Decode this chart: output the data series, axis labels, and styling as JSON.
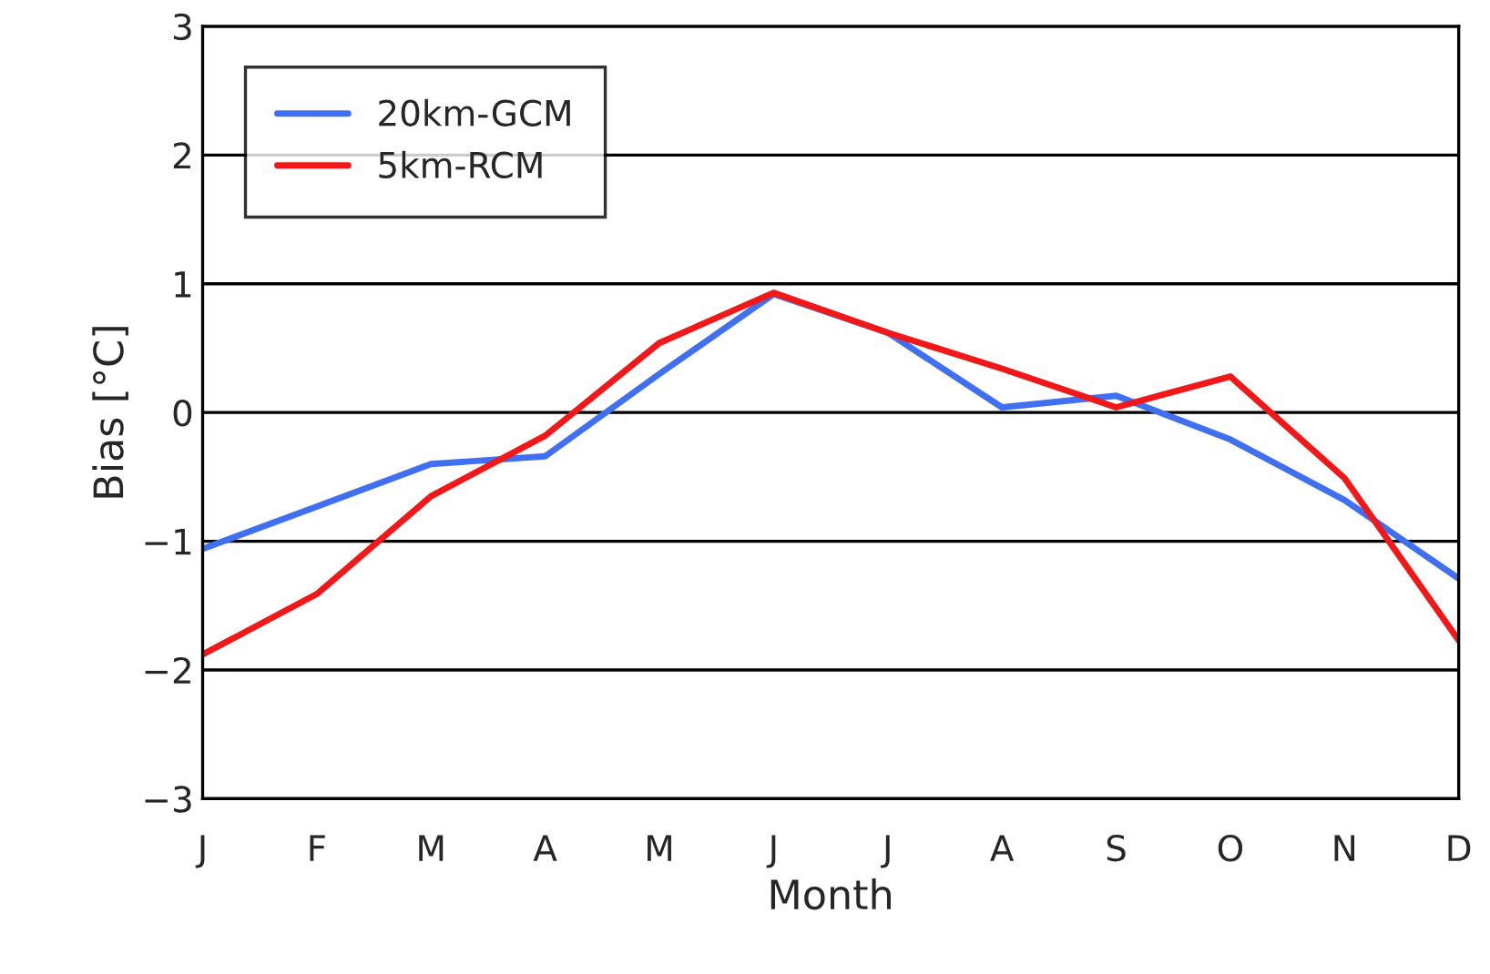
{
  "chart_data": {
    "type": "line",
    "xlabel": "Month",
    "ylabel": "Bias [°C]",
    "categories": [
      "J",
      "F",
      "M",
      "A",
      "M",
      "J",
      "J",
      "A",
      "S",
      "O",
      "N",
      "D"
    ],
    "series": [
      {
        "name": "20km-GCM",
        "color": "#4070f0",
        "values": [
          -1.06,
          -0.73,
          -0.4,
          -0.34,
          0.3,
          0.92,
          0.62,
          0.04,
          0.13,
          -0.21,
          -0.68,
          -1.29
        ]
      },
      {
        "name": "5km-RCM",
        "color": "#f01818",
        "values": [
          -1.88,
          -1.41,
          -0.65,
          -0.18,
          0.54,
          0.93,
          0.62,
          0.34,
          0.04,
          0.28,
          -0.51,
          -1.77
        ]
      }
    ],
    "ylim": [
      -3,
      3
    ],
    "yticks": [
      {
        "value": -3,
        "label": "−3"
      },
      {
        "value": -2,
        "label": "−2"
      },
      {
        "value": -1,
        "label": "−1"
      },
      0,
      1,
      2,
      3
    ],
    "grid": "y",
    "legend": "top left",
    "marker": "none",
    "line_style": "solid"
  }
}
